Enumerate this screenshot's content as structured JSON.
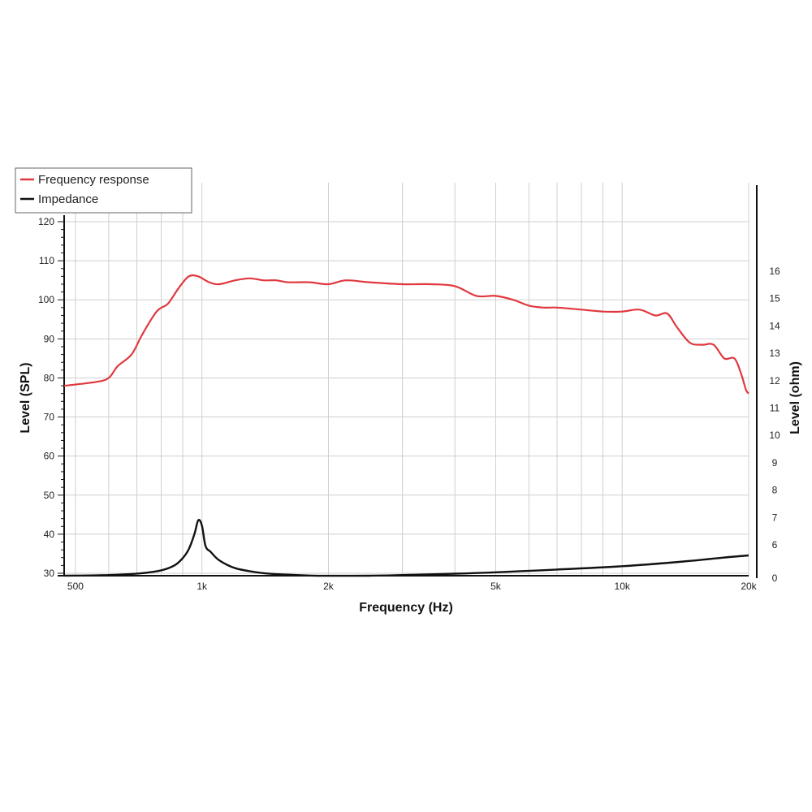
{
  "chart_data": {
    "type": "line",
    "xlabel": "Frequency (Hz)",
    "ylabel": "Level (SPL)",
    "y2label": "Level (ohm)",
    "x_scale": "log",
    "xlim": [
      470,
      20000
    ],
    "ylim": [
      30,
      120
    ],
    "y2lim": [
      0,
      16
    ],
    "x_ticks": [
      {
        "value": 500,
        "label": "500"
      },
      {
        "value": 1000,
        "label": "1k"
      },
      {
        "value": 2000,
        "label": "2k"
      },
      {
        "value": 5000,
        "label": "5k"
      },
      {
        "value": 10000,
        "label": "10k"
      },
      {
        "value": 20000,
        "label": "20k"
      }
    ],
    "y_ticks": [
      30,
      40,
      50,
      60,
      70,
      80,
      90,
      100,
      110,
      120
    ],
    "y2_ticks": [
      0,
      6,
      7,
      8,
      9,
      10,
      11,
      12,
      13,
      14,
      15,
      16
    ],
    "grid": true,
    "legend_position": "top-left",
    "series": [
      {
        "name": "Frequency response",
        "axis": "left",
        "color": "#e0383e",
        "x": [
          470,
          560,
          600,
          630,
          680,
          720,
          780,
          830,
          880,
          930,
          980,
          1040,
          1100,
          1200,
          1300,
          1400,
          1500,
          1600,
          1800,
          2000,
          2200,
          2500,
          3000,
          3500,
          4000,
          4500,
          5000,
          5500,
          6000,
          6500,
          7000,
          8000,
          9000,
          10000,
          11000,
          12000,
          12800,
          13500,
          14500,
          15500,
          16500,
          17500,
          18500,
          19200,
          19700,
          20000
        ],
        "values": [
          78,
          79,
          80,
          83,
          86,
          91,
          97,
          99,
          103,
          106,
          106,
          104.5,
          104,
          105,
          105.5,
          105,
          105,
          104.5,
          104.5,
          104,
          105,
          104.5,
          104,
          104,
          103.5,
          101,
          101,
          100,
          98.5,
          98,
          98,
          97.5,
          97,
          97,
          97.5,
          96,
          96.5,
          93,
          89,
          88.5,
          88.5,
          85,
          85,
          81,
          77,
          76
        ]
      },
      {
        "name": "Impedance",
        "axis": "right",
        "color": "#111111",
        "x": [
          470,
          560,
          640,
          720,
          800,
          860,
          900,
          930,
          960,
          980,
          1000,
          1020,
          1050,
          1100,
          1200,
          1350,
          1500,
          1800,
          2000,
          2500,
          3000,
          4000,
          5000,
          7000,
          10000,
          14000,
          18000,
          20000
        ],
        "values": [
          0.45,
          0.5,
          0.65,
          0.9,
          1.4,
          2.3,
          3.6,
          5.2,
          6.4,
          6.9,
          6.7,
          5.8,
          4.7,
          3.2,
          1.8,
          1.05,
          0.72,
          0.47,
          0.42,
          0.44,
          0.55,
          0.8,
          1.05,
          1.55,
          2.15,
          3.0,
          3.8,
          4.1
        ]
      }
    ]
  }
}
